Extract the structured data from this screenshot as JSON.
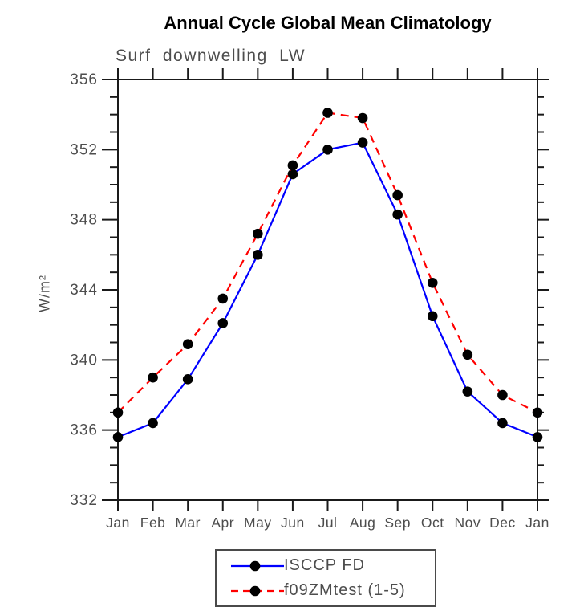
{
  "title": "Annual Cycle Global Mean Climatology",
  "subtitle": "Surf downwelling LW",
  "ylabel": "W/m²",
  "colors": {
    "axis": "#1a1a1a",
    "tick_label": "#4d4d4d",
    "title": "#000000",
    "subtitle": "#4d4d4d",
    "series1": "#0000ff",
    "series2": "#ff0000",
    "marker": "#000000",
    "background": "#ffffff"
  },
  "chart_data": {
    "type": "line",
    "title": "Annual Cycle Global Mean Climatology",
    "subtitle": "Surf downwelling LW",
    "xlabel": "",
    "ylabel": "W/m²",
    "categories": [
      "Jan",
      "Feb",
      "Mar",
      "Apr",
      "May",
      "Jun",
      "Jul",
      "Aug",
      "Sep",
      "Oct",
      "Nov",
      "Dec",
      "Jan"
    ],
    "ylim": [
      332,
      356
    ],
    "ytick_major_step": 4,
    "ytick_minor_step": 1,
    "grid": false,
    "legend_position": "bottom-center",
    "series": [
      {
        "name": "ISCCP FD",
        "color": "#0000ff",
        "line_style": "solid",
        "marker": "filled-circle",
        "marker_color": "#000000",
        "values": [
          335.6,
          336.4,
          338.9,
          342.1,
          346.0,
          350.6,
          352.0,
          352.4,
          348.3,
          342.5,
          338.2,
          336.4,
          335.6
        ]
      },
      {
        "name": "f09ZMtest (1-5)",
        "color": "#ff0000",
        "line_style": "dashed",
        "marker": "filled-circle",
        "marker_color": "#000000",
        "values": [
          337.0,
          339.0,
          340.9,
          343.5,
          347.2,
          351.1,
          354.1,
          353.8,
          349.4,
          344.4,
          340.3,
          338.0,
          337.0
        ]
      }
    ]
  }
}
